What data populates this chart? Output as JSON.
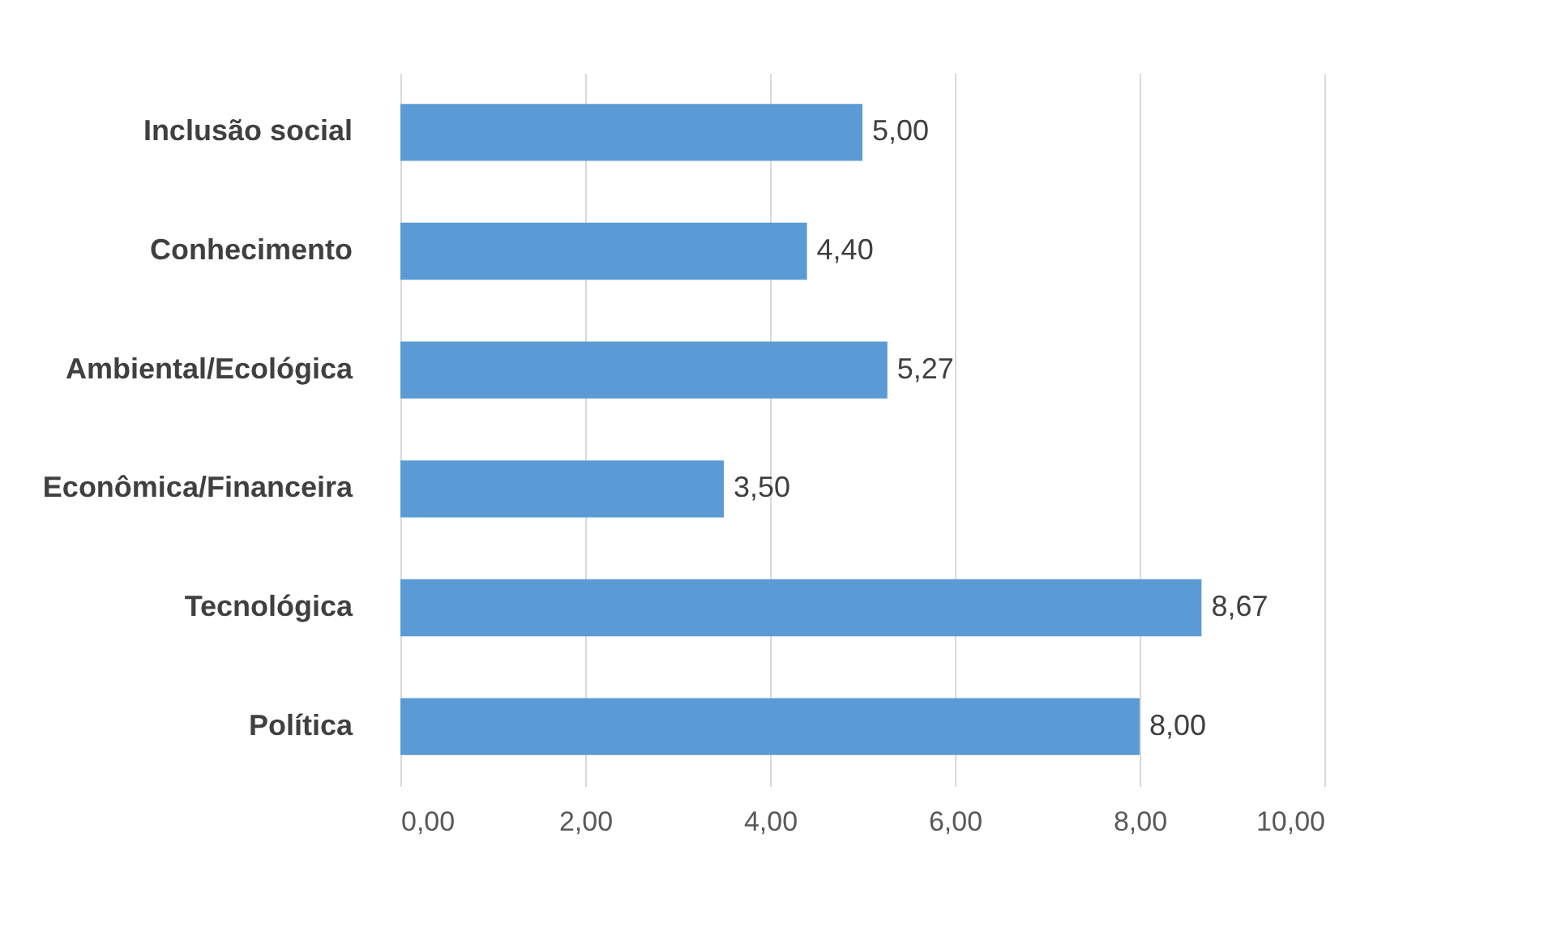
{
  "chart_data": {
    "type": "bar",
    "orientation": "horizontal",
    "categories": [
      "Inclusão social",
      "Conhecimento",
      "Ambiental/Ecológica",
      "Econômica/Financeira",
      "Tecnológica",
      "Política"
    ],
    "values": [
      5.0,
      4.4,
      5.27,
      3.5,
      8.67,
      8.0
    ],
    "value_labels": [
      "5,00",
      "4,40",
      "5,27",
      "3,50",
      "8,67",
      "8,00"
    ],
    "color": "#5b9bd5",
    "xlim": [
      0,
      10
    ],
    "xticks": [
      {
        "value": 0,
        "label": "0,00"
      },
      {
        "value": 2,
        "label": "2,00"
      },
      {
        "value": 4,
        "label": "4,00"
      },
      {
        "value": 6,
        "label": "6,00"
      },
      {
        "value": 8,
        "label": "8,00"
      },
      {
        "value": 10,
        "label": "10,00"
      }
    ],
    "grid": "x"
  }
}
